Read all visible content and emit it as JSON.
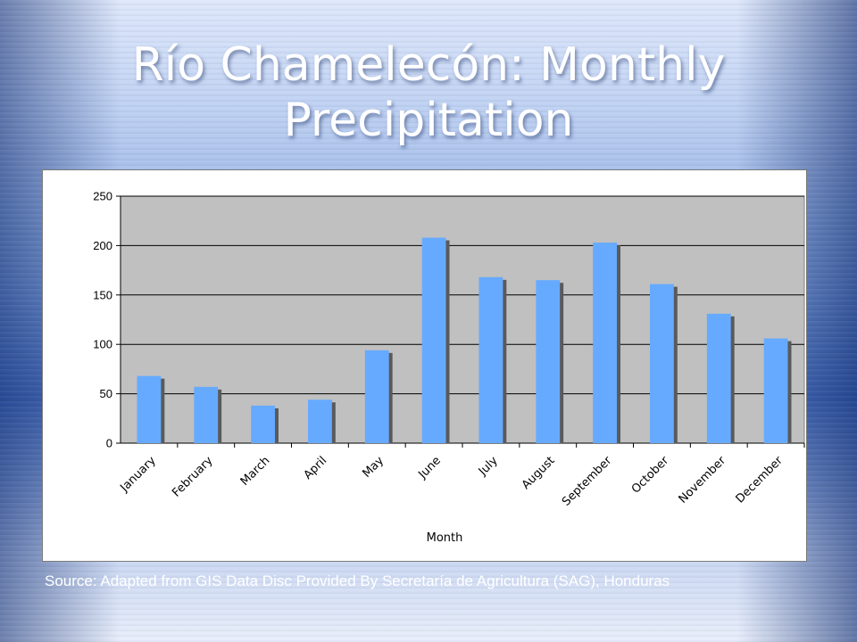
{
  "slide": {
    "title": "Río Chamelecón: Monthly\nPrecipitation",
    "source": "Source: Adapted from GIS Data Disc Provided By Secretaría de Agricultura (SAG), Honduras"
  },
  "colors": {
    "bar": "#66aaff",
    "bar_shadow": "#5a5a5a",
    "plot_bg": "#c0c0c0",
    "gridline": "#000000"
  },
  "chart_data": {
    "type": "bar",
    "title": "",
    "xlabel": "Month",
    "ylabel": "",
    "categories": [
      "January",
      "February",
      "March",
      "April",
      "May",
      "June",
      "July",
      "August",
      "September",
      "October",
      "November",
      "December"
    ],
    "values": [
      68,
      57,
      38,
      44,
      94,
      208,
      168,
      165,
      203,
      161,
      131,
      106
    ],
    "ylim": [
      0,
      250
    ],
    "yticks": [
      0,
      50,
      100,
      150,
      200,
      250
    ],
    "grid": true,
    "legend": "none"
  }
}
